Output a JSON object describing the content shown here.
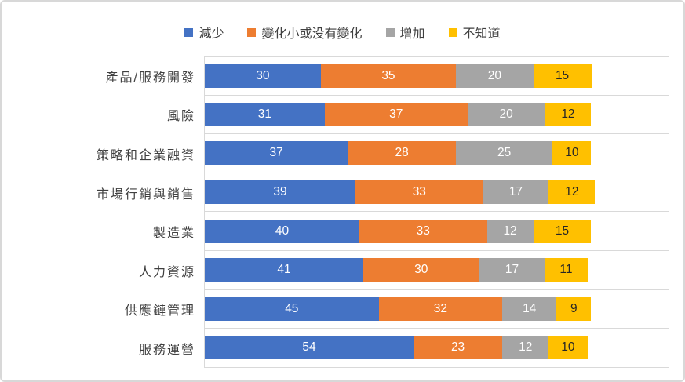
{
  "chart_data": {
    "type": "bar",
    "orientation": "horizontal",
    "stacked": true,
    "title": "",
    "xlabel": "",
    "ylabel": "",
    "legend_position": "top",
    "grid": "category-boundary-lines",
    "xlim": [
      0,
      120
    ],
    "categories": [
      "產品/服務開發",
      "風險",
      "策略和企業融資",
      "市場行銷與銷售",
      "製造業",
      "人力資源",
      "供應鏈管理",
      "服務運營"
    ],
    "series": [
      {
        "name": "減少",
        "color": "#4472C4",
        "label_color": "#FFFFFF",
        "values": [
          30,
          31,
          37,
          39,
          40,
          41,
          45,
          54
        ]
      },
      {
        "name": "變化小或没有變化",
        "color": "#ED7D31",
        "label_color": "#FFFFFF",
        "values": [
          35,
          37,
          28,
          33,
          33,
          30,
          32,
          23
        ]
      },
      {
        "name": "增加",
        "color": "#A5A5A5",
        "label_color": "#FFFFFF",
        "values": [
          20,
          20,
          25,
          17,
          12,
          17,
          14,
          12
        ]
      },
      {
        "name": "不知道",
        "color": "#FFC000",
        "label_color": "#262626",
        "values": [
          15,
          12,
          10,
          12,
          15,
          11,
          9,
          10
        ]
      }
    ]
  },
  "colors": {
    "gridline": "#D9D9D9",
    "frame_border": "#D8D8D8",
    "axis_text": "#404040",
    "background": "#FFFFFF"
  }
}
